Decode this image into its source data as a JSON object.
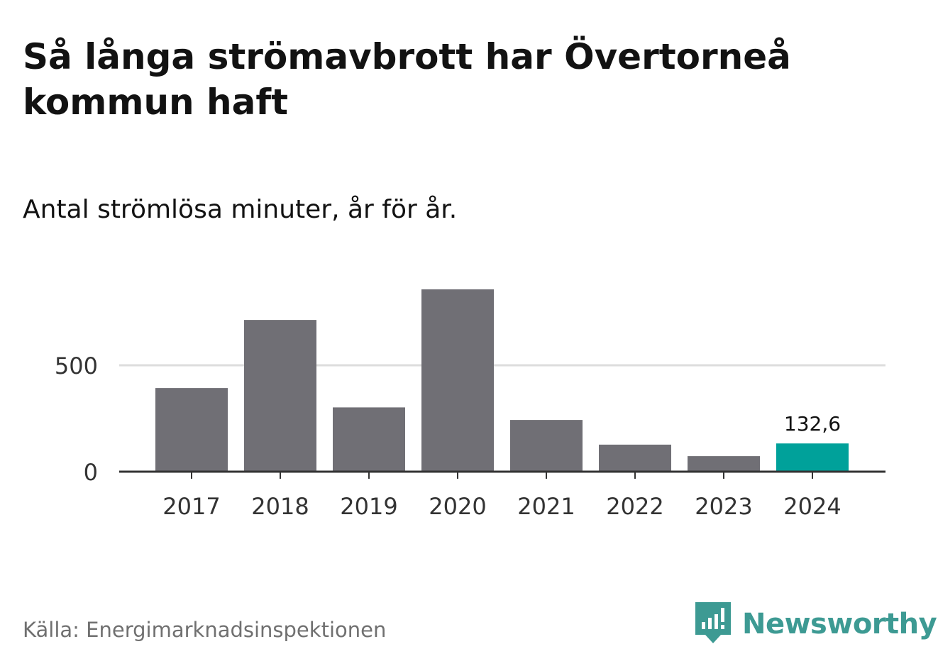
{
  "header": {
    "title": "Så långa strömavbrott har Övertorneå kommun haft",
    "subtitle": "Antal strömlösa minuter, år för år."
  },
  "footer": {
    "source": "Källa: Energimarknadsinspektionen",
    "brand": "Newsworthy",
    "brand_icon": "newsworthy-logo-icon"
  },
  "colors": {
    "bar": "#706f75",
    "highlight": "#00a19a",
    "grid": "#dddddd",
    "axis": "#333333",
    "brand": "#3d9a93"
  },
  "chart_data": {
    "type": "bar",
    "title": "Så långa strömavbrott har Övertorneå kommun haft",
    "subtitle": "Antal strömlösa minuter, år för år.",
    "xlabel": "",
    "ylabel": "",
    "categories": [
      "2017",
      "2018",
      "2019",
      "2020",
      "2021",
      "2022",
      "2023",
      "2024"
    ],
    "values": [
      393,
      713,
      302,
      857,
      243,
      127,
      73,
      132.6
    ],
    "highlight_index": 7,
    "highlight_label": "132,6",
    "y_ticks": [
      0,
      500
    ],
    "y_tick_labels": [
      "0",
      "500"
    ],
    "ylim": [
      0,
      900
    ],
    "grid": true,
    "legend": "none"
  }
}
